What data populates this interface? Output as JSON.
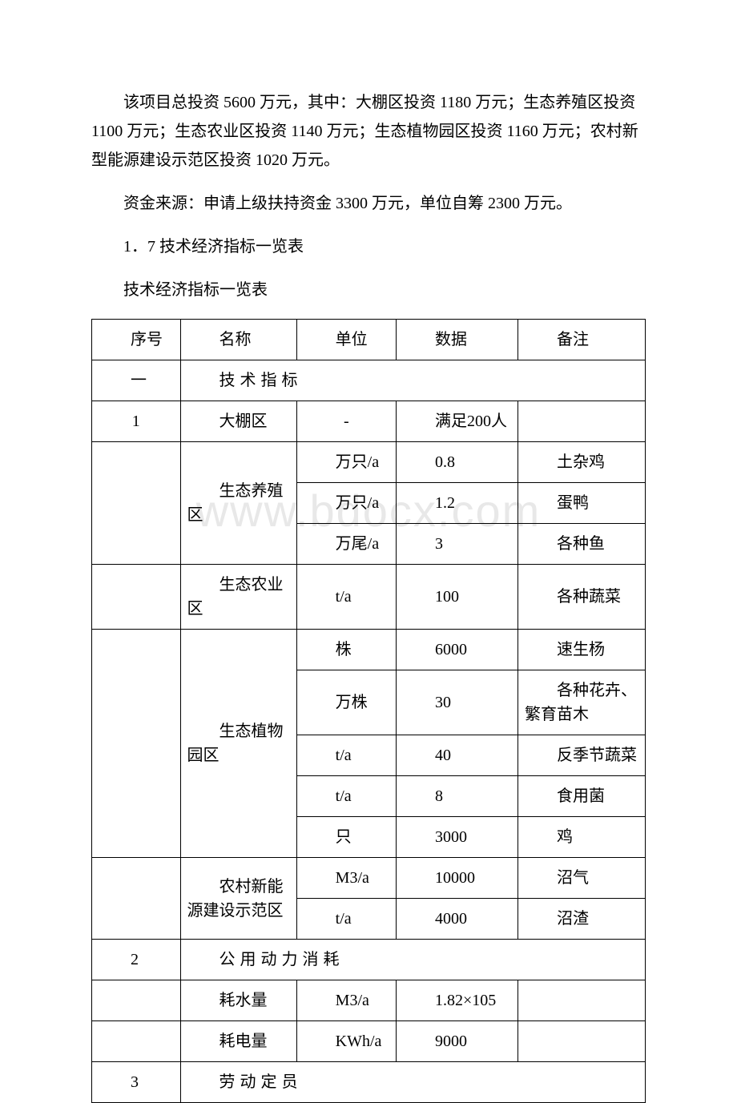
{
  "paragraphs": {
    "p1": "该项目总投资 5600 万元，其中：大棚区投资 1180 万元；生态养殖区投资 1100 万元；生态农业区投资 1140 万元；生态植物园区投资 1160 万元；农村新型能源建设示范区投资 1020 万元。",
    "p2": "资金来源：申请上级扶持资金 3300 万元，单位自筹 2300 万元。",
    "p3": "1．7 技术经济指标一览表",
    "p4": "技术经济指标一览表"
  },
  "watermark": "www.bdocx.com",
  "table": {
    "header": {
      "col1": "序号",
      "col2": "名称",
      "col3": "单位",
      "col4": "数据",
      "col5": "备注"
    },
    "section1": {
      "num": "一",
      "title": "技术指标"
    },
    "row_dapeng": {
      "num": "1",
      "name": "大棚区",
      "unit": "-",
      "data": "满足200人",
      "remark": ""
    },
    "row_yangzhi": {
      "name": "生态养殖区",
      "items": [
        {
          "unit": "万只/a",
          "data": "0.8",
          "remark": "土杂鸡"
        },
        {
          "unit": "万只/a",
          "data": "1.2",
          "remark": "蛋鸭"
        },
        {
          "unit": "万尾/a",
          "data": "3",
          "remark": "各种鱼"
        }
      ]
    },
    "row_nongye": {
      "name": "生态农业区",
      "unit": "t/a",
      "data": "100",
      "remark": "各种蔬菜"
    },
    "row_zhiwu": {
      "name": "生态植物园区",
      "items": [
        {
          "unit": "株",
          "data": "6000",
          "remark": "速生杨"
        },
        {
          "unit": "万株",
          "data": "30",
          "remark": "各种花卉、繁育苗木"
        },
        {
          "unit": "t/a",
          "data": "40",
          "remark": "反季节蔬菜"
        },
        {
          "unit": "t/a",
          "data": "8",
          "remark": "食用菌"
        },
        {
          "unit": "只",
          "data": "3000",
          "remark": "鸡"
        }
      ]
    },
    "row_nengyuan": {
      "name": "农村新能源建设示范区",
      "items": [
        {
          "unit": "M3/a",
          "data": "10000",
          "remark": "沼气"
        },
        {
          "unit": "t/a",
          "data": "4000",
          "remark": "沼渣"
        }
      ]
    },
    "section2": {
      "num": "2",
      "title": "公用动力消耗"
    },
    "row_water": {
      "name": "耗水量",
      "unit": "M3/a",
      "data": "1.82×105",
      "remark": ""
    },
    "row_elec": {
      "name": "耗电量",
      "unit": "KWh/a",
      "data": "9000",
      "remark": ""
    },
    "section3": {
      "num": "3",
      "title": "劳动定员"
    }
  }
}
